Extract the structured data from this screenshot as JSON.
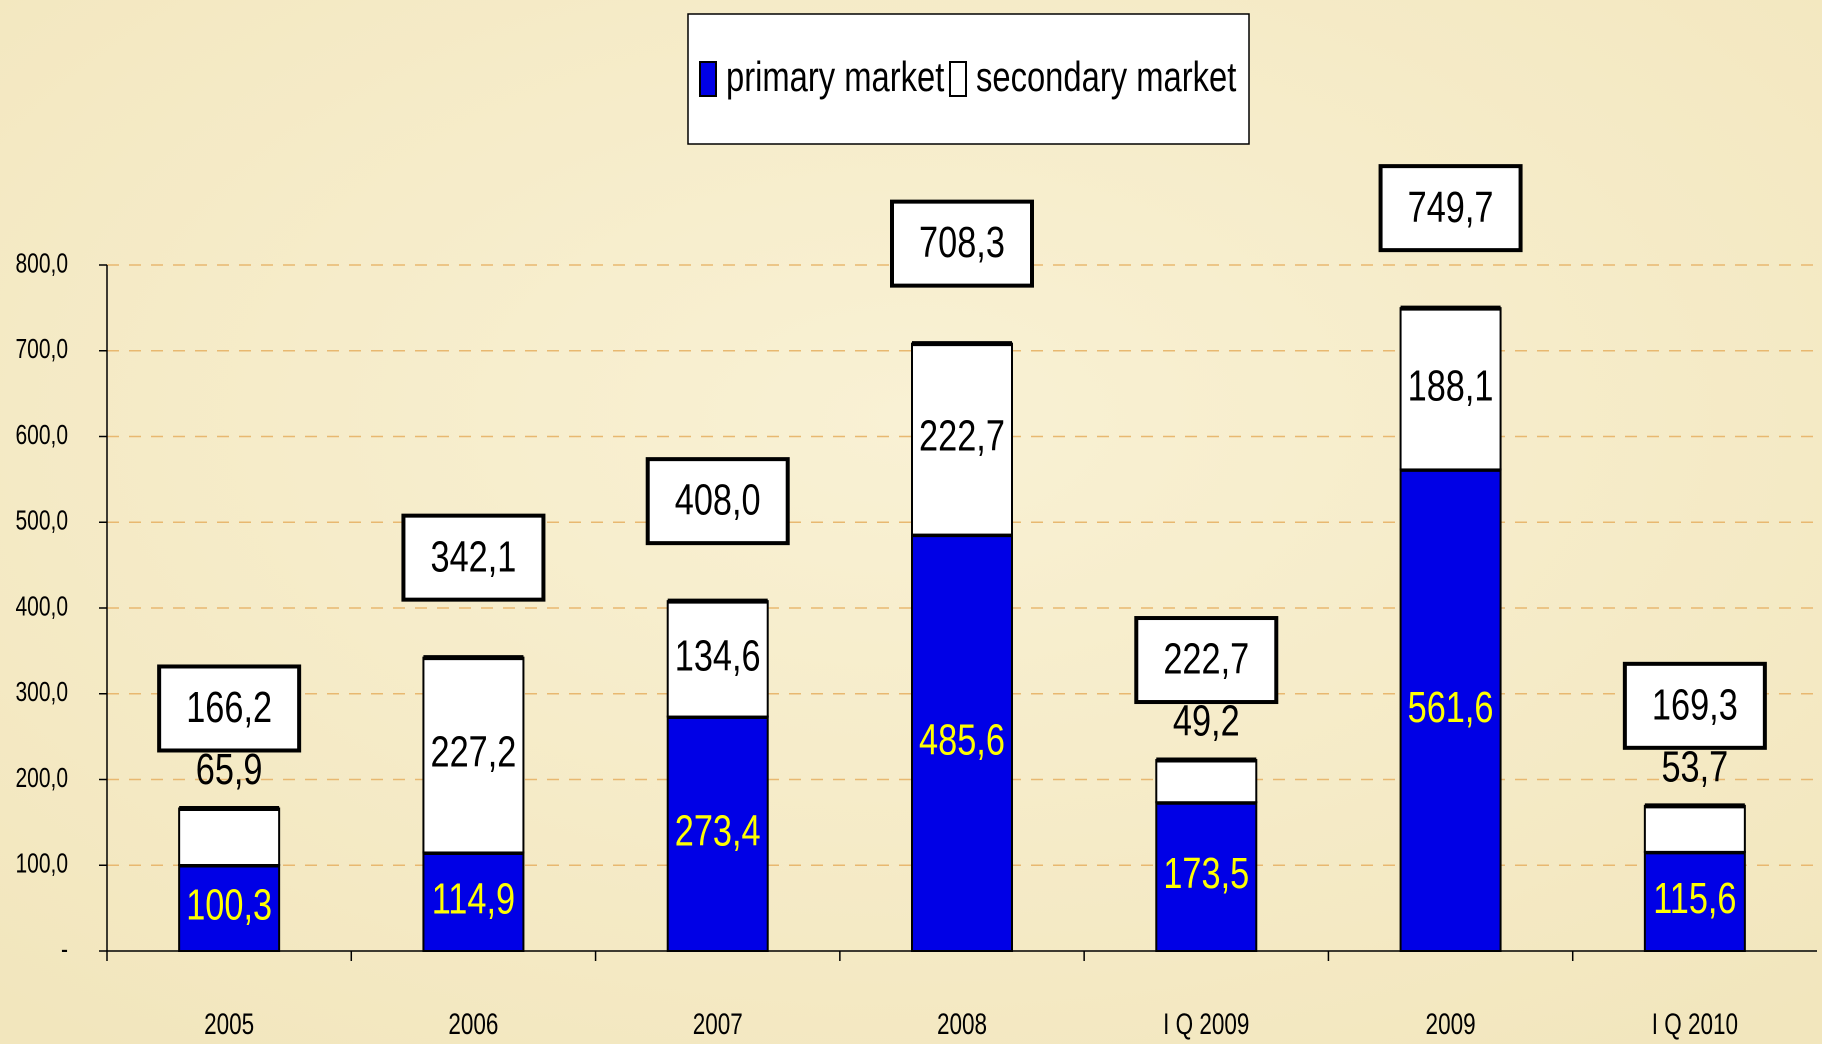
{
  "chart_data": {
    "type": "stacked_bar",
    "categories": [
      "2005",
      "2006",
      "2007",
      "2008",
      "I Q 2009",
      "2009",
      "I Q 2010"
    ],
    "series": [
      {
        "name": "primary market",
        "color": "#0000e6",
        "values": [
          100.3,
          114.9,
          273.4,
          485.6,
          173.5,
          561.6,
          115.6
        ],
        "value_labels": [
          "100,3",
          "114,9",
          "273,4",
          "485,6",
          "173,5",
          "561,6",
          "115,6"
        ]
      },
      {
        "name": "secondary market",
        "color": "#ffffff",
        "values": [
          65.9,
          227.2,
          134.6,
          222.7,
          49.2,
          188.1,
          53.7
        ],
        "value_labels": [
          "65,9",
          "227,2",
          "134,6",
          "222,7",
          "49,2",
          "188,1",
          "53,7"
        ]
      }
    ],
    "totals": {
      "values": [
        166.2,
        342.1,
        408.0,
        708.3,
        222.7,
        749.7,
        169.3
      ],
      "value_labels": [
        "166,2",
        "342,1",
        "408,0",
        "708,3",
        "222,7",
        "749,7",
        "169,3"
      ]
    },
    "ylim": [
      0,
      800
    ],
    "yticks": [
      {
        "value": 0,
        "label": "-"
      },
      {
        "value": 100,
        "label": "100,0"
      },
      {
        "value": 200,
        "label": "200,0"
      },
      {
        "value": 300,
        "label": "300,0"
      },
      {
        "value": 400,
        "label": "400,0"
      },
      {
        "value": 500,
        "label": "500,0"
      },
      {
        "value": 600,
        "label": "600,0"
      },
      {
        "value": 700,
        "label": "700,0"
      },
      {
        "value": 800,
        "label": "800,0"
      }
    ],
    "grid": true,
    "legend": "top"
  }
}
